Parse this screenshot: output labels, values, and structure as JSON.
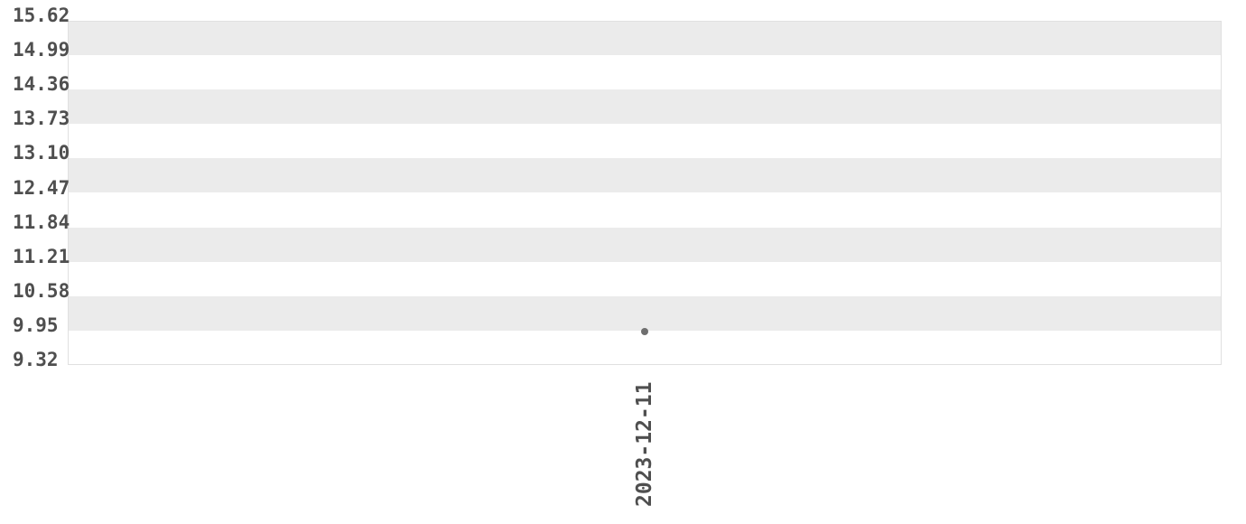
{
  "chart_data": {
    "type": "scatter",
    "title": "",
    "xlabel": "",
    "ylabel": "",
    "categories": [
      "2023-12-11"
    ],
    "series": [
      {
        "values": [
          9.93
        ]
      }
    ],
    "y_ticks": [
      "15.62",
      "14.99",
      "14.36",
      "13.73",
      "13.10",
      "12.47",
      "11.84",
      "11.21",
      "10.58",
      "9.95",
      "9.32"
    ],
    "ylim": [
      9.32,
      15.62
    ],
    "legend": "none",
    "grid": "horizontal-alternating-bands",
    "band_pattern_start": "shaded",
    "x_tick_rotation_deg": 90,
    "colors": {
      "background": "#ffffff",
      "band_shaded": "#ebebeb",
      "band_plain": "#ffffff",
      "plot_border": "#e0e0e0",
      "tick_label": "#4f4f4f",
      "point": "#6f6f6f"
    }
  }
}
